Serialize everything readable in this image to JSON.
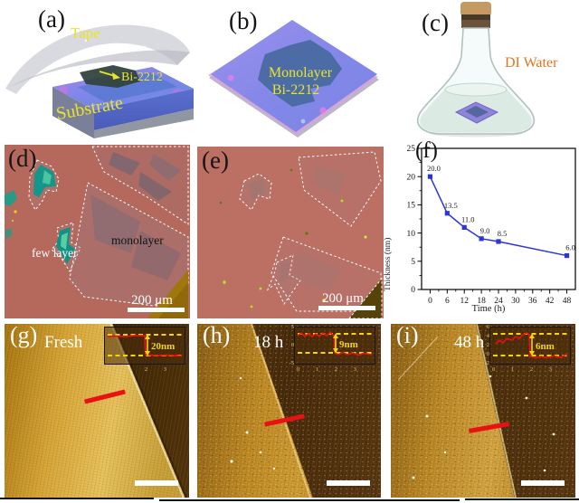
{
  "panels": {
    "a": {
      "label": "(a)",
      "tape_label": "Tape",
      "flake_label": "Bi-2212",
      "substrate_label": "Substrate"
    },
    "b": {
      "label": "(b)",
      "flake_label_line1": "Monolayer",
      "flake_label_line2": "Bi-2212"
    },
    "c": {
      "label": "(c)",
      "water_label": "DI Water"
    },
    "d": {
      "label": "(d)",
      "annotation_few_layer": "few layer",
      "annotation_monolayer": "monolayer",
      "scale_bar": "200 μm"
    },
    "e": {
      "label": "(e)",
      "scale_bar": "200 μm"
    },
    "f": {
      "label": "(f)"
    },
    "g": {
      "label": "(g)",
      "age_label": "Fresh",
      "inset": {
        "step_height": "20nm",
        "x_ticks": [
          "0",
          "1",
          "2",
          "3"
        ],
        "y_ticks": [
          "10",
          "0",
          "-10"
        ]
      }
    },
    "h": {
      "label": "(h)",
      "age_label": "18 h",
      "inset": {
        "step_height": "9nm",
        "x_ticks": [
          "0",
          "1",
          "2",
          "3"
        ],
        "y_ticks": [
          "5",
          "0",
          "-5"
        ]
      }
    },
    "i": {
      "label": "(i)",
      "age_label": "48 h",
      "inset": {
        "step_height": "6nm",
        "x_ticks": [
          "0",
          "1",
          "2",
          "3"
        ],
        "y_ticks": [
          "6",
          "4",
          "2",
          "0",
          "-2"
        ]
      }
    }
  },
  "chart_data": {
    "type": "line",
    "x": [
      0,
      6,
      12,
      18,
      24,
      48
    ],
    "values": [
      20.0,
      13.5,
      11.0,
      9.0,
      8.5,
      6.0
    ],
    "point_labels": [
      "20.0",
      "13.5",
      "11.0",
      "9.0",
      "8.5",
      "6.0"
    ],
    "xlabel": "Time (h)",
    "ylabel": "Thickness (nm)",
    "xlim": [
      -3,
      51
    ],
    "ylim": [
      0,
      25
    ],
    "x_ticks": [
      0,
      6,
      12,
      18,
      24,
      30,
      36,
      42,
      48
    ],
    "y_ticks": [
      0,
      5,
      10,
      15,
      20,
      25
    ],
    "minor_x_step": 3,
    "minor_y_step": 2.5,
    "grid": false,
    "legend": false,
    "line_color": "#2b35d8",
    "marker": "square"
  },
  "colors": {
    "schematic_label": "#e9e32a",
    "di_water_label": "#e8731e",
    "optical_background": "#b5685c",
    "chart_line": "#2b35d8",
    "profile_marker": "#e81212",
    "inset_annotation": "#f2d410"
  }
}
